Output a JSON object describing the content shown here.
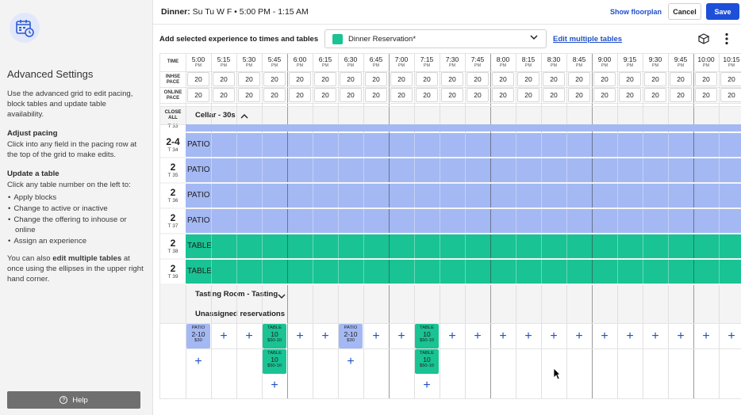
{
  "sidebar": {
    "icon": "calendar-settings-icon",
    "title": "Advanced Settings",
    "intro": "Use the advanced grid to edit pacing, block tables and update table availability.",
    "pacing_heading": "Adjust pacing",
    "pacing_text": "Click into any field in the pacing row at the top of the grid to make edits.",
    "update_heading": "Update a table",
    "update_text": "Click any table number on the left to:",
    "update_items": [
      "Apply blocks",
      "Change to active or inactive",
      "Change the offering to inhouse or online",
      "Assign an experience"
    ],
    "multi_prefix": "You can also ",
    "multi_bold": "edit multiple tables",
    "multi_suffix": " at once using the ellipses in the upper right hand corner.",
    "help_label": "Help"
  },
  "header": {
    "title_bold": "Dinner:",
    "title_rest": " Su Tu W F • 5:00 PM - 1:15 AM",
    "show_floorplan": "Show floorplan",
    "cancel": "Cancel",
    "save": "Save"
  },
  "toolbar": {
    "label": "Add selected experience to times and tables",
    "experience": "Dinner Reservation*",
    "experience_color": "#19c393",
    "edit_multiple": "Edit multiple tables"
  },
  "grid": {
    "row_labels": {
      "time": "TIME",
      "inhse_1": "INHSE",
      "inhse_2": "PACE",
      "online_1": "ONLINE",
      "online_2": "PACE",
      "close_1": "CLOSE",
      "close_2": "ALL"
    },
    "pm": "PM",
    "times": [
      "5:00",
      "5:15",
      "5:30",
      "5:45",
      "6:00",
      "6:15",
      "6:30",
      "6:45",
      "7:00",
      "7:15",
      "7:30",
      "7:45",
      "8:00",
      "8:15",
      "8:30",
      "8:45",
      "9:00",
      "9:15",
      "9:30",
      "9:45",
      "10:00",
      "10:15"
    ],
    "inhouse_pace": [
      "20",
      "20",
      "20",
      "20",
      "20",
      "20",
      "20",
      "20",
      "20",
      "20",
      "20",
      "20",
      "20",
      "20",
      "20",
      "20",
      "20",
      "20",
      "20",
      "20",
      "20",
      "20"
    ],
    "online_pace": [
      "20",
      "20",
      "20",
      "20",
      "20",
      "20",
      "20",
      "20",
      "20",
      "20",
      "20",
      "20",
      "20",
      "20",
      "20",
      "20",
      "20",
      "20",
      "20",
      "20",
      "20",
      "20"
    ],
    "cellar_section": "Cellar - 30s",
    "partial_table": "T 33",
    "tables": [
      {
        "size": "2-4",
        "num": "T 34",
        "name": "PATIO",
        "color": "#a4b8f3"
      },
      {
        "size": "2",
        "num": "T 35",
        "name": "PATIO",
        "color": "#a4b8f3"
      },
      {
        "size": "2",
        "num": "T 36",
        "name": "PATIO",
        "color": "#a4b8f3"
      },
      {
        "size": "2",
        "num": "T 37",
        "name": "PATIO",
        "color": "#a4b8f3"
      },
      {
        "size": "2",
        "num": "T 38",
        "name": "TABLE",
        "color": "#19c393"
      },
      {
        "size": "2",
        "num": "T 39",
        "name": "TABLE",
        "color": "#19c393"
      }
    ],
    "tasting_section": "Tasting Room - Tasting",
    "unassigned_section": "Unassigned reservations",
    "unassigned": [
      {
        "slot": 0,
        "row": 0,
        "cap": "PATIO",
        "size": "2-10",
        "price": "$30",
        "color": "#a4b8f3"
      },
      {
        "slot": 3,
        "row": 0,
        "cap": "TABLE",
        "size": "10",
        "price": "$50-10",
        "color": "#19c393"
      },
      {
        "slot": 3,
        "row": 1,
        "cap": "TABLE",
        "size": "10",
        "price": "$50-10",
        "color": "#19c393"
      },
      {
        "slot": 6,
        "row": 0,
        "cap": "PATIO",
        "size": "2-10",
        "price": "$30",
        "color": "#a4b8f3"
      },
      {
        "slot": 9,
        "row": 0,
        "cap": "TABLE",
        "size": "10",
        "price": "$50-10",
        "color": "#19c393"
      },
      {
        "slot": 9,
        "row": 1,
        "cap": "TABLE",
        "size": "10",
        "price": "$50-10",
        "color": "#19c393"
      }
    ],
    "plus_symbol": "+"
  }
}
